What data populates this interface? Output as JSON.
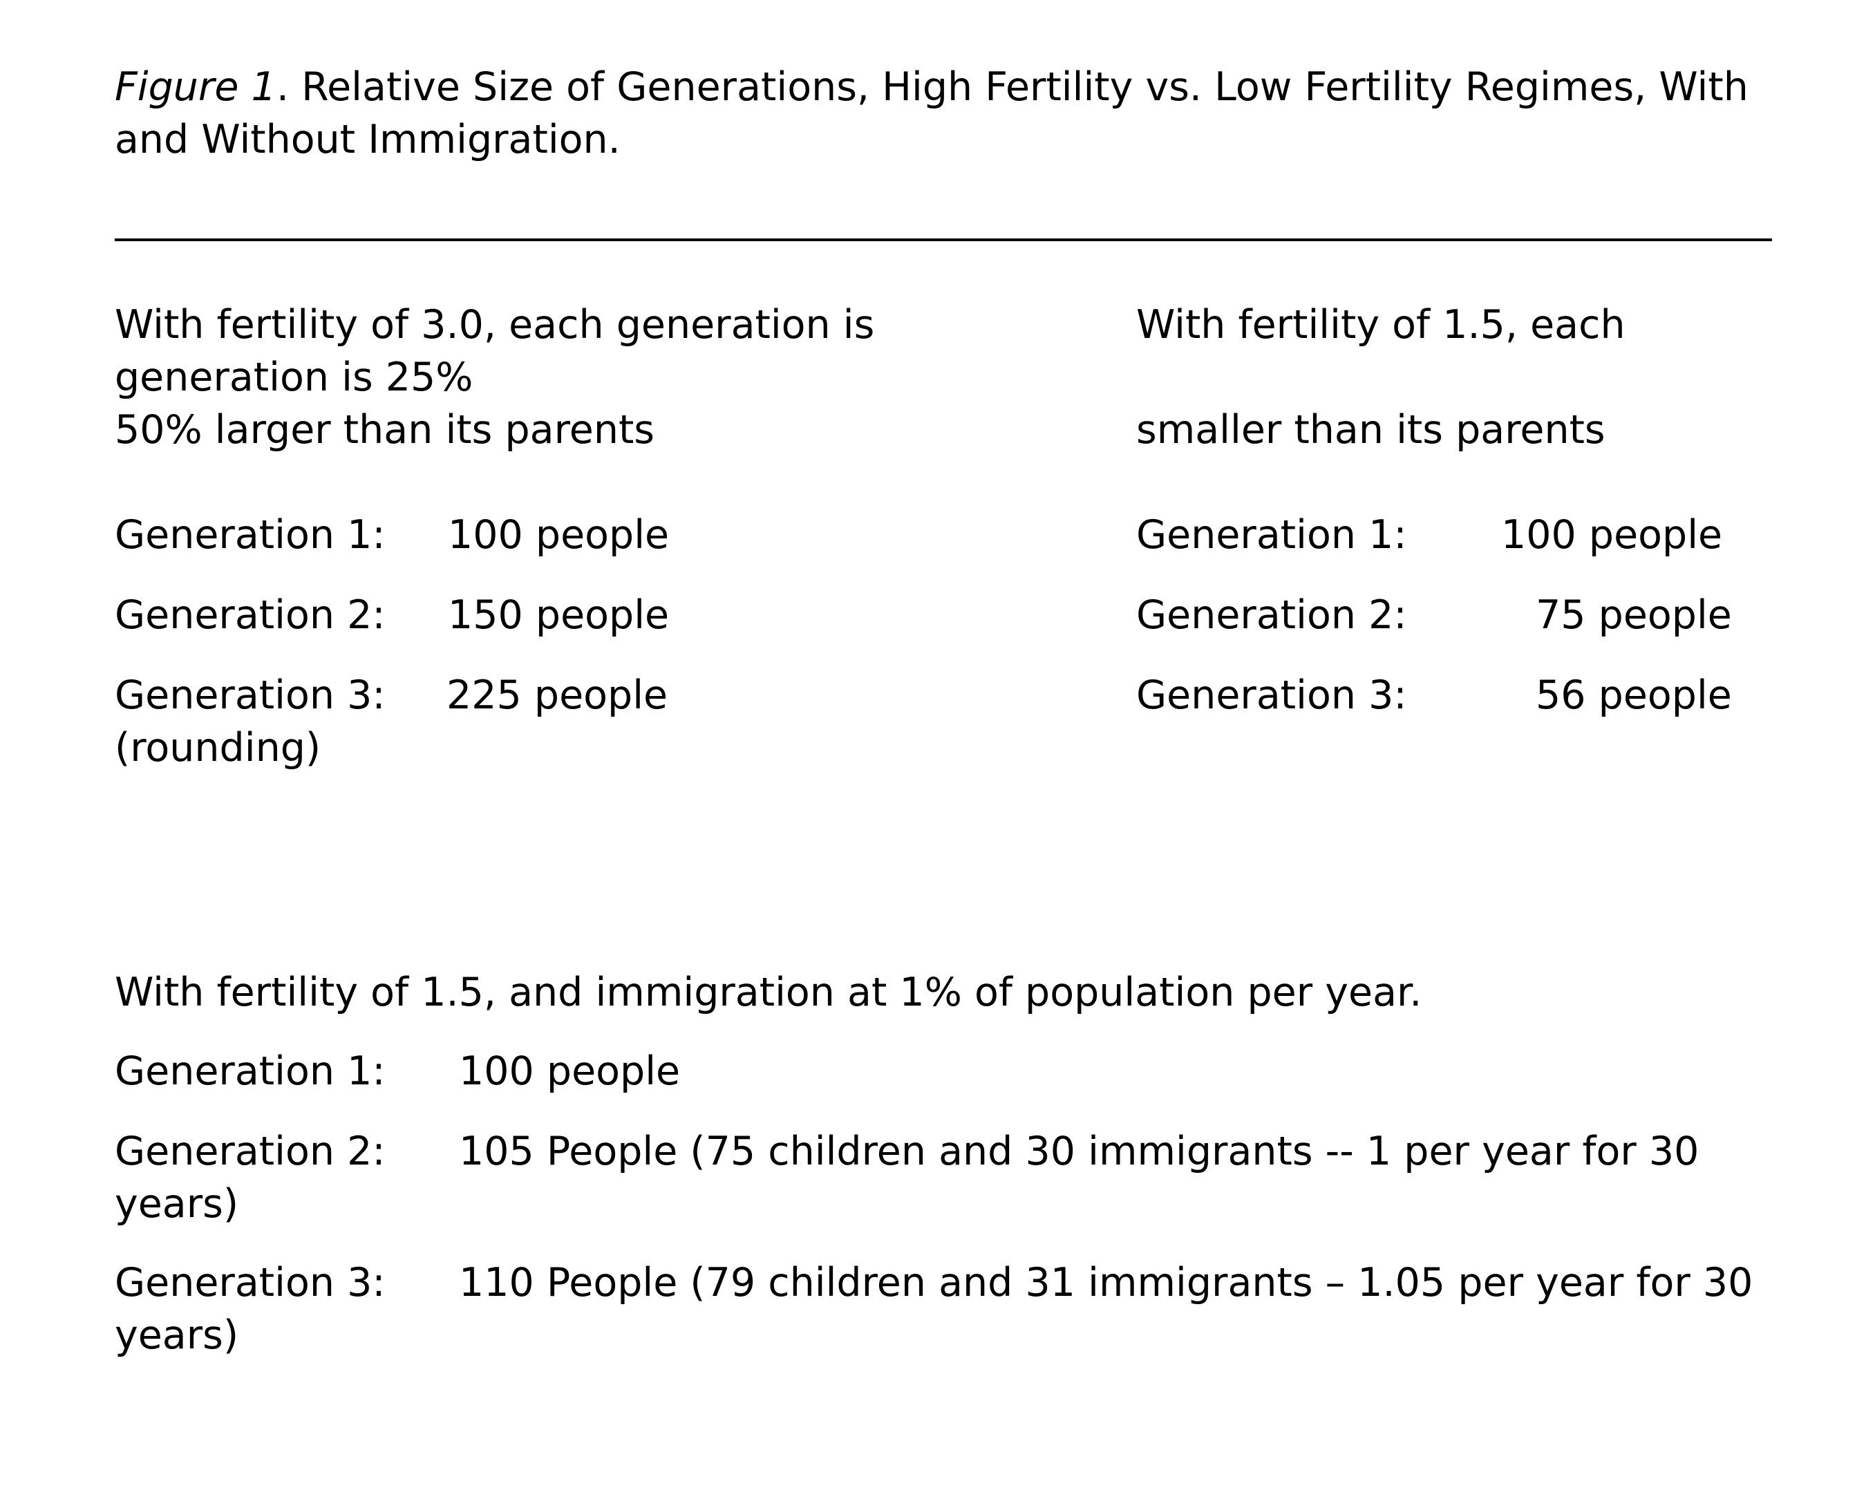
{
  "figure": {
    "label": "Figure 1",
    "caption_line1": ". Relative Size of Generations, High Fertility vs. Low Fertility Regimes, With",
    "caption_line2": "and Without Immigration."
  },
  "high_fertility": {
    "intro_line1": "With fertility of 3.0, each generation is",
    "intro_line2": "generation is 25%",
    "intro_line3": "50% larger than its parents",
    "rows": [
      {
        "label": "Generation 1:",
        "value": "100 people"
      },
      {
        "label": "Generation 2:",
        "value": "150 people"
      },
      {
        "label": "Generation 3:",
        "value": "225 people"
      }
    ],
    "note": "(rounding)"
  },
  "low_fertility": {
    "intro_line1": "With fertility of 1.5, each",
    "intro_line2": "smaller than its parents",
    "rows": [
      {
        "label": "Generation 1:",
        "value": "100 people"
      },
      {
        "label": "Generation 2:",
        "value": "75 people"
      },
      {
        "label": "Generation 3:",
        "value": "56 people"
      }
    ]
  },
  "immigration": {
    "intro": "With fertility of 1.5, and immigration at 1% of population per year.",
    "rows": [
      {
        "label": "Generation 1:",
        "value": "100 people",
        "wrap": ""
      },
      {
        "label": "Generation 2:",
        "value": "105 People (75 children and 30 immigrants -- 1 per year for 30",
        "wrap": "years)"
      },
      {
        "label": "Generation 3:",
        "value": "110 People (79 children and 31 immigrants – 1.05 per year for 30",
        "wrap": "years)"
      }
    ]
  }
}
